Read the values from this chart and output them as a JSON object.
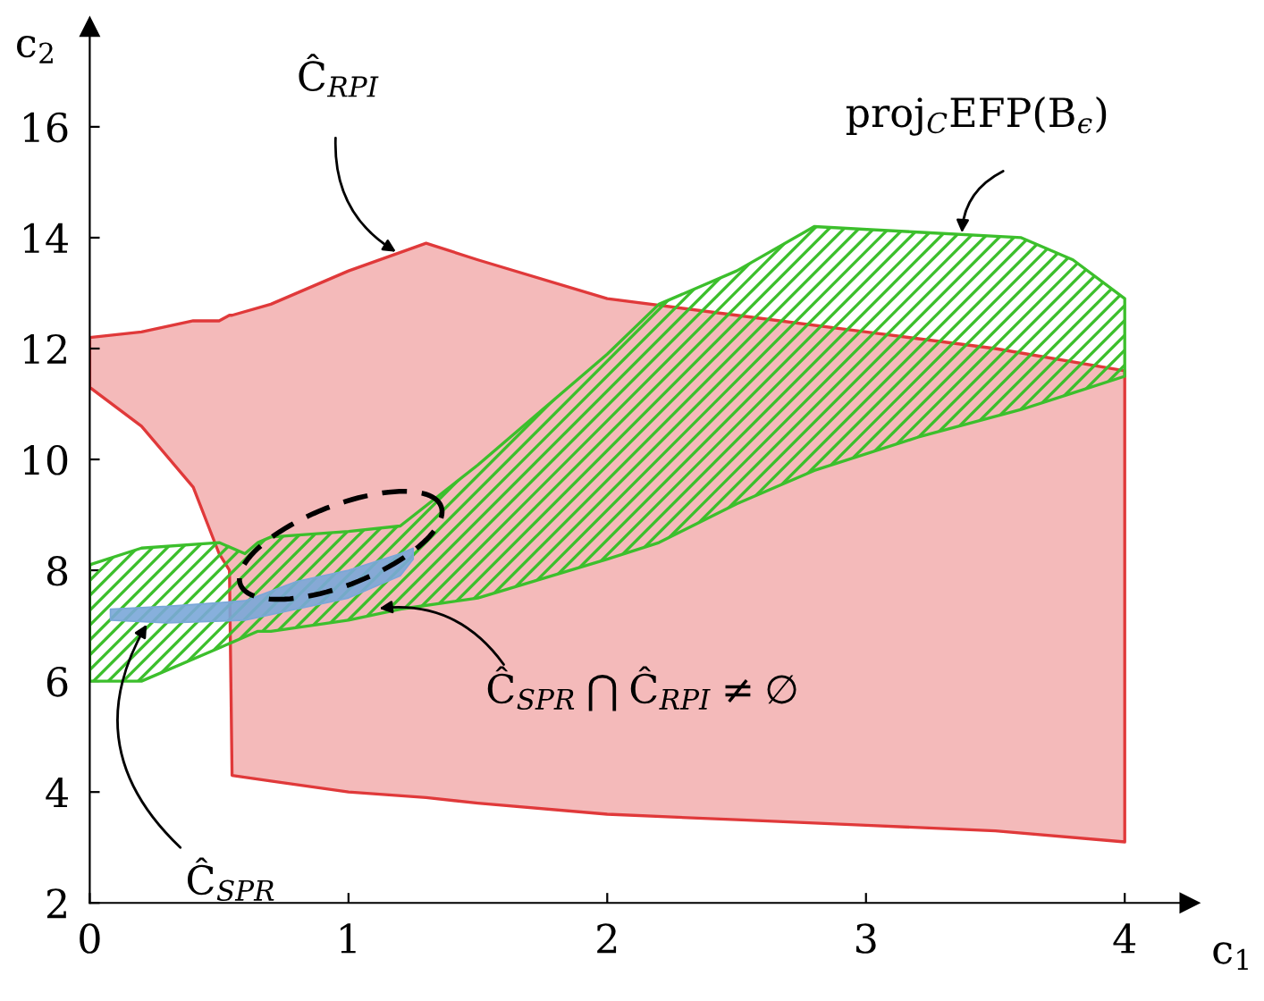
{
  "chart_data": {
    "type": "area",
    "xlabel": "c$_{1}$",
    "ylabel": "c$_{2}$",
    "xlim": [
      0,
      4.25
    ],
    "ylim": [
      2,
      17.8
    ],
    "xticks": [
      0,
      1,
      2,
      3,
      4
    ],
    "yticks": [
      2,
      4,
      6,
      8,
      10,
      12,
      14,
      16
    ],
    "grid": false,
    "legend": false,
    "series": [
      {
        "color": "#e0393a",
        "values": [
          null,
          null,
          null,
          null,
          null,
          null,
          null,
          null,
          null,
          null,
          null,
          null,
          null,
          null,
          null
        ],
        "x": [
          0,
          0.2,
          0.4,
          0.5,
          0.54,
          0.55,
          0.7,
          1.0,
          1.3,
          1.5,
          2.0,
          2.5,
          3.0,
          3.5,
          4.0
        ],
        "upper": [
          12.2,
          12.3,
          12.5,
          12.5,
          12.6,
          12.6,
          12.8,
          13.4,
          13.9,
          13.6,
          12.9,
          12.6,
          12.3,
          12.0,
          11.6
        ],
        "lower": [
          11.3,
          10.6,
          9.5,
          8.3,
          8.0,
          4.3,
          4.2,
          4.0,
          3.9,
          3.8,
          3.6,
          3.5,
          3.4,
          3.3,
          3.1
        ]
      },
      {
        "color": "#3cbf2c",
        "values": [
          null,
          null,
          null,
          null,
          null,
          null,
          null,
          null,
          null,
          null,
          null,
          null,
          null,
          null,
          null,
          null,
          null
        ],
        "x": [
          0,
          0.2,
          0.5,
          0.6,
          0.65,
          0.7,
          1.0,
          1.2,
          1.5,
          2.0,
          2.2,
          2.5,
          2.8,
          3.2,
          3.6,
          3.8,
          4.0
        ],
        "upper": [
          8.1,
          8.4,
          8.5,
          8.3,
          8.5,
          8.6,
          8.7,
          8.8,
          9.9,
          11.9,
          12.8,
          13.4,
          14.2,
          14.1,
          14.0,
          13.6,
          12.9
        ],
        "lower": [
          6.0,
          6.0,
          6.6,
          6.8,
          6.9,
          6.9,
          7.1,
          7.3,
          7.5,
          8.2,
          8.5,
          9.2,
          9.8,
          10.4,
          10.9,
          11.2,
          11.5
        ]
      },
      {
        "color": "#7aa7d8",
        "values": [
          null,
          null,
          null,
          null,
          null,
          null,
          null
        ],
        "x": [
          0.08,
          0.3,
          0.6,
          0.8,
          1.0,
          1.2,
          1.25
        ],
        "upper": [
          7.3,
          7.35,
          7.45,
          7.8,
          8.0,
          8.3,
          8.4
        ],
        "lower": [
          7.1,
          7.05,
          7.1,
          7.3,
          7.5,
          7.9,
          8.2
        ]
      }
    ],
    "annotations": [
      {
        "text": "Ĉ$_{RPI}$",
        "x": 1.2,
        "y": 13.7
      },
      {
        "text": "proj$_{C}$EFP(B$_{ϵ}$)",
        "x": 3.37,
        "y": 14.0
      },
      {
        "text": "Ĉ$_{SPR}$ ⋂ Ĉ$_{RPI}$ ≠ ∅",
        "x": 1.1,
        "y": 7.3
      },
      {
        "text": "Ĉ$_{SPR}$",
        "x": 0.23,
        "y": 7.1
      }
    ]
  }
}
